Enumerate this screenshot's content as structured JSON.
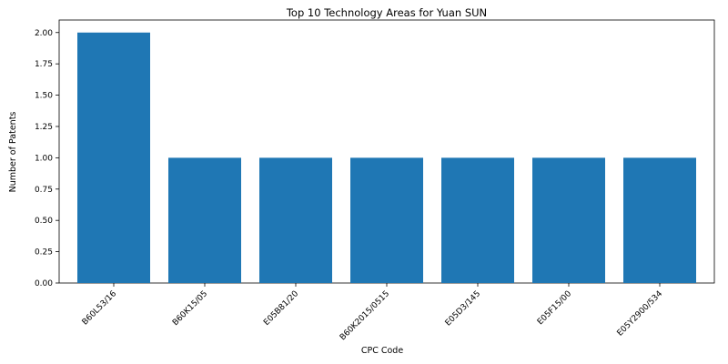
{
  "chart_data": {
    "type": "bar",
    "title": "Top 10 Technology Areas for Yuan SUN",
    "xlabel": "CPC Code",
    "ylabel": "Number of Patents",
    "categories": [
      "B60L53/16",
      "B60K15/05",
      "E05B81/20",
      "B60K2015/0515",
      "E05D3/145",
      "E05F15/00",
      "E05Y2900/534"
    ],
    "values": [
      2,
      1,
      1,
      1,
      1,
      1,
      1
    ],
    "ylim": [
      0,
      2.1
    ],
    "yticks": [
      "0.00",
      "0.25",
      "0.50",
      "0.75",
      "1.00",
      "1.25",
      "1.50",
      "1.75",
      "2.00"
    ],
    "bar_color": "#1f77b4",
    "grid": false,
    "legend": "none"
  }
}
